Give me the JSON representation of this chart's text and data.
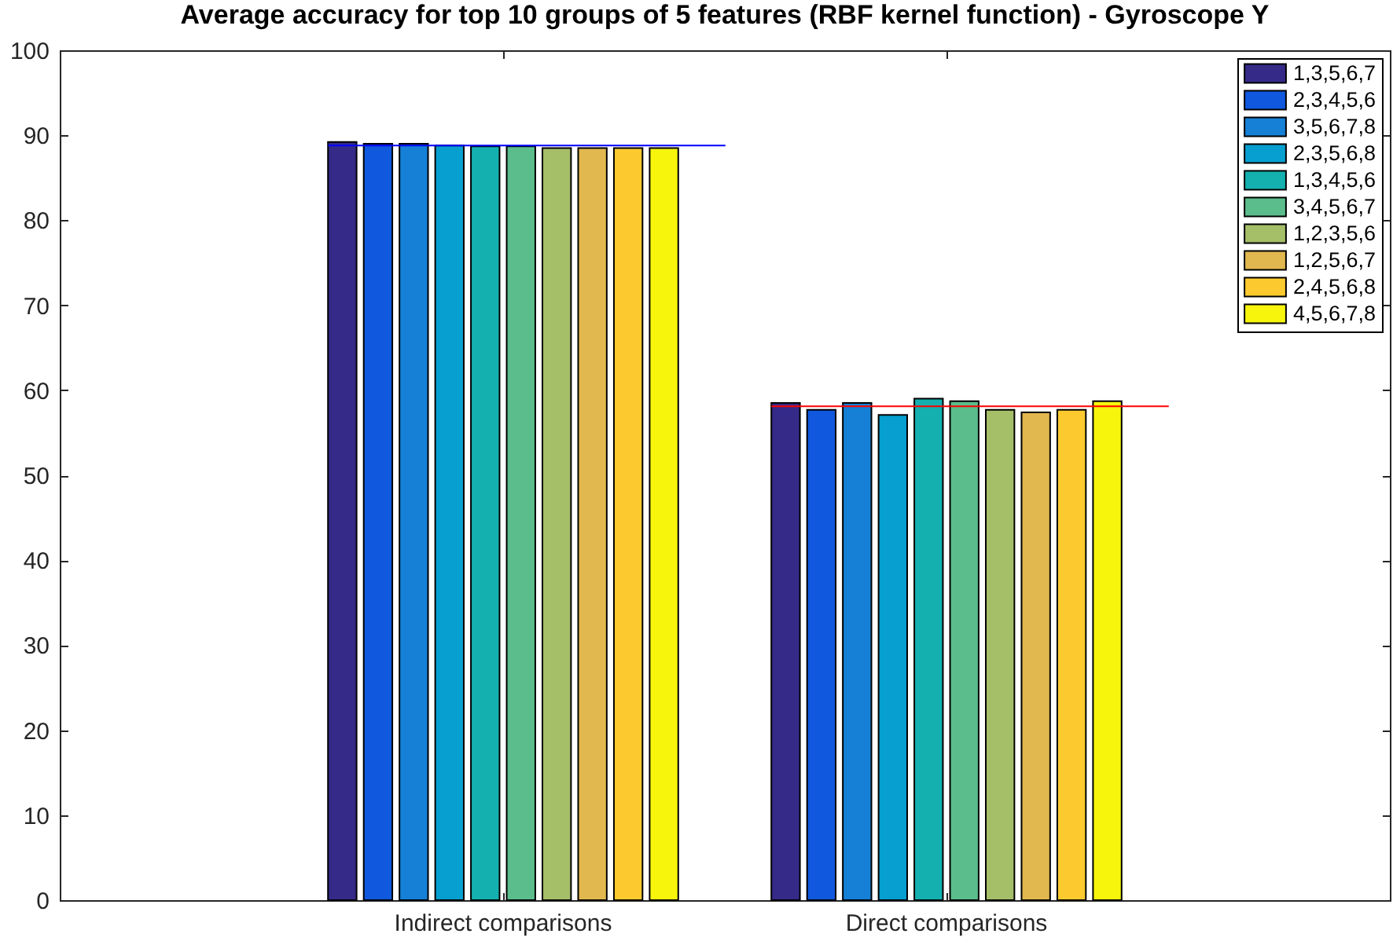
{
  "chart_data": {
    "type": "bar",
    "title": "Average accuracy for top 10 groups of 5 features (RBF kernel function) - Gyroscope Y",
    "categories": [
      "Indirect comparisons",
      "Direct comparisons"
    ],
    "series": [
      {
        "name": "1,3,5,6,7",
        "color": "#352a87",
        "values": [
          89.2,
          58.5
        ]
      },
      {
        "name": "2,3,4,5,6",
        "color": "#1058de",
        "values": [
          89.0,
          57.7
        ]
      },
      {
        "name": "3,5,6,7,8",
        "color": "#1580d6",
        "values": [
          89.0,
          58.5
        ]
      },
      {
        "name": "2,3,5,6,8",
        "color": "#069fd0",
        "values": [
          88.8,
          57.1
        ]
      },
      {
        "name": "1,3,4,5,6",
        "color": "#14b0b0",
        "values": [
          88.7,
          59.0
        ]
      },
      {
        "name": "3,4,5,6,7",
        "color": "#5abd8b",
        "values": [
          88.7,
          58.7
        ]
      },
      {
        "name": "1,2,3,5,6",
        "color": "#a5be68",
        "values": [
          88.5,
          57.7
        ]
      },
      {
        "name": "1,2,5,6,7",
        "color": "#e1b84f",
        "values": [
          88.5,
          57.4
        ]
      },
      {
        "name": "2,4,5,6,8",
        "color": "#fcca2f",
        "values": [
          88.5,
          57.7
        ]
      },
      {
        "name": "4,5,6,7,8",
        "color": "#f7f50c",
        "values": [
          88.5,
          58.7
        ]
      }
    ],
    "ylim": [
      0,
      100
    ],
    "yticks": [
      0,
      10,
      20,
      30,
      40,
      50,
      60,
      70,
      80,
      90,
      100
    ],
    "legend": "top right",
    "ref_lines": [
      {
        "axis": "y",
        "value": 88.8,
        "color": "#0000ff"
      },
      {
        "axis": "y",
        "value": 58.1,
        "color": "#ff0000"
      }
    ]
  }
}
